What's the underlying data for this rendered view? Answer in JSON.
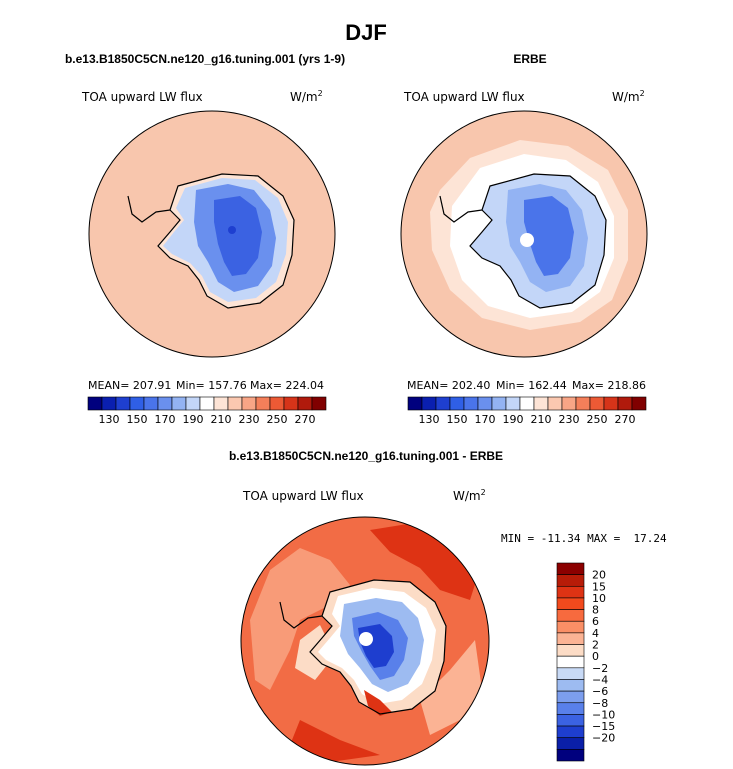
{
  "page_title": "DJF",
  "chart_data": [
    {
      "type": "heatmap",
      "projection": "south-polar-stereographic",
      "title": "b.e13.B1850C5CN.ne120_g16.tuning.001 (yrs 1-9)",
      "variable": "TOA upward LW flux",
      "units": "W/m",
      "units_exponent": "2",
      "stats": {
        "mean": "MEAN= 207.91",
        "min": "Min= 157.76",
        "max": "Max= 224.04"
      },
      "colorbar": {
        "orientation": "horizontal",
        "levels": [
          120,
          130,
          140,
          150,
          160,
          170,
          180,
          190,
          200,
          210,
          220,
          230,
          240,
          250,
          260,
          270,
          280
        ],
        "tick_labels": [
          "130",
          "150",
          "170",
          "190",
          "210",
          "230",
          "250",
          "270"
        ]
      }
    },
    {
      "type": "heatmap",
      "projection": "south-polar-stereographic",
      "title": "ERBE",
      "variable": "TOA upward LW flux",
      "units": "W/m",
      "units_exponent": "2",
      "stats": {
        "mean": "MEAN= 202.40",
        "min": "Min= 162.44",
        "max": "Max= 218.86"
      },
      "colorbar": {
        "orientation": "horizontal",
        "levels": [
          120,
          130,
          140,
          150,
          160,
          170,
          180,
          190,
          200,
          210,
          220,
          230,
          240,
          250,
          260,
          270,
          280
        ],
        "tick_labels": [
          "130",
          "150",
          "170",
          "190",
          "210",
          "230",
          "250",
          "270"
        ]
      }
    },
    {
      "type": "heatmap",
      "projection": "south-polar-stereographic",
      "title": "b.e13.B1850C5CN.ne120_g16.tuning.001 - ERBE",
      "variable": "TOA upward LW flux",
      "units": "W/m",
      "units_exponent": "2",
      "stats_text": "MIN = -11.34 MAX =  17.24",
      "colorbar": {
        "orientation": "vertical",
        "tick_labels": [
          "20",
          "15",
          "10",
          "8",
          "6",
          "4",
          "2",
          "0",
          "−2",
          "−4",
          "−6",
          "−8",
          "−10",
          "−15",
          "−20"
        ]
      }
    }
  ],
  "colors": {
    "abs_scale": [
      "#00007e",
      "#0a1fb0",
      "#1e3fd0",
      "#2f5fe6",
      "#4a74ea",
      "#6a90ee",
      "#93b3f3",
      "#c3d6f8",
      "#ffffff",
      "#fde4d6",
      "#fbc8b0",
      "#f8a586",
      "#f47f5a",
      "#ec5a35",
      "#d63419",
      "#b01a0c",
      "#800000"
    ],
    "diff_scale": [
      "#8b0000",
      "#b71c08",
      "#de3314",
      "#f24a1d",
      "#f76a3e",
      "#fa8f66",
      "#fbb394",
      "#fcdcc6",
      "#ffffff",
      "#c8daf6",
      "#9dbbf1",
      "#7c9eee",
      "#5980ea",
      "#3b62e2",
      "#1e3ecf",
      "#0a1fa8",
      "#00007e"
    ],
    "ocean_model": "#f8c6ad",
    "ocean_obs": "#fbdfcf",
    "diff_ocean": "#f26c45"
  }
}
